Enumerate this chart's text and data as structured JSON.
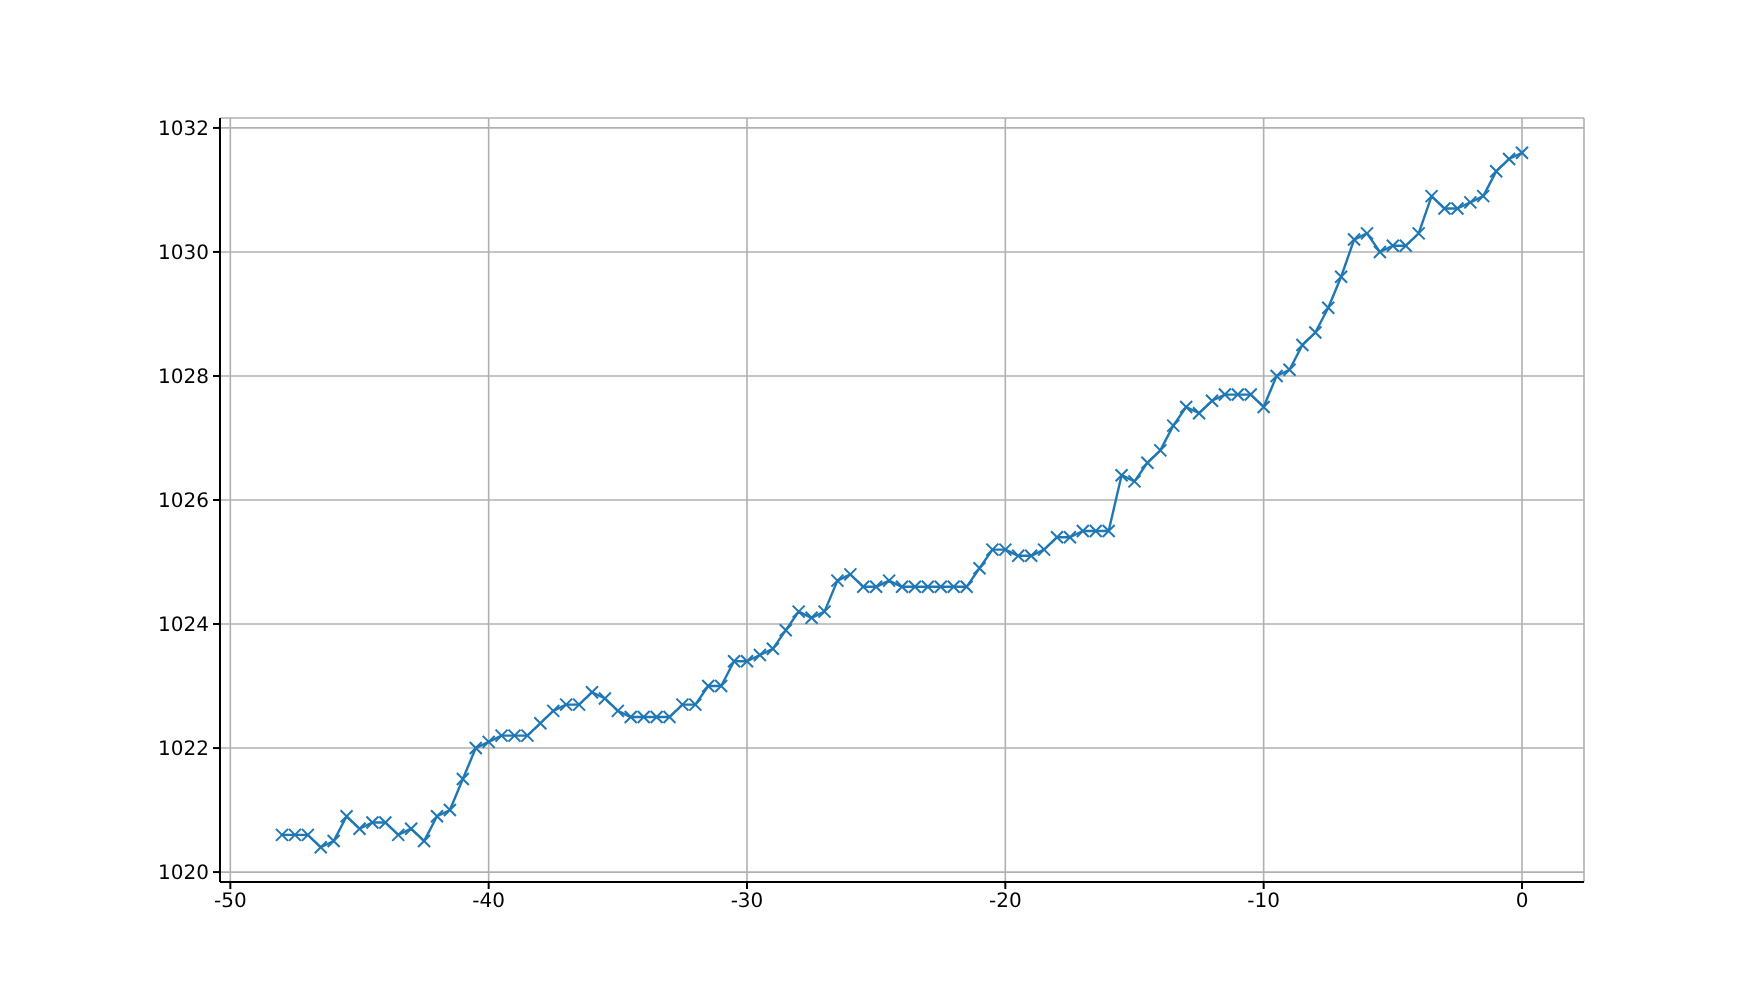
{
  "chart_data": {
    "type": "line",
    "x": [
      -48,
      -47.5,
      -47,
      -46.5,
      -46,
      -45.5,
      -45,
      -44.5,
      -44,
      -43.5,
      -43,
      -42.5,
      -42,
      -41.5,
      -41,
      -40.5,
      -40,
      -39.5,
      -39,
      -38.5,
      -38,
      -37.5,
      -37,
      -36.5,
      -36,
      -35.5,
      -35,
      -34.5,
      -34,
      -33.5,
      -33,
      -32.5,
      -32,
      -31.5,
      -31,
      -30.5,
      -30,
      -29.5,
      -29,
      -28.5,
      -28,
      -27.5,
      -27,
      -26.5,
      -26,
      -25.5,
      -25,
      -24.5,
      -24,
      -23.5,
      -23,
      -22.5,
      -22,
      -21.5,
      -21,
      -20.5,
      -20,
      -19.5,
      -19,
      -18.5,
      -18,
      -17.5,
      -17,
      -16.5,
      -16,
      -15.5,
      -15,
      -14.5,
      -14,
      -13.5,
      -13,
      -12.5,
      -12,
      -11.5,
      -11,
      -10.5,
      -10,
      -9.5,
      -9,
      -8.5,
      -8,
      -7.5,
      -7,
      -6.5,
      -6,
      -5.5,
      -5,
      -4.5,
      -4,
      -3.5,
      -3,
      -2.5,
      -2,
      -1.5,
      -1,
      -0.5,
      0
    ],
    "series": [
      {
        "color": "#1f77b4",
        "values": [
          1020.6,
          1020.6,
          1020.6,
          1020.4,
          1020.5,
          1020.9,
          1020.7,
          1020.8,
          1020.8,
          1020.6,
          1020.7,
          1020.5,
          1020.9,
          1021.0,
          1021.5,
          1022.0,
          1022.1,
          1022.2,
          1022.2,
          1022.2,
          1022.4,
          1022.6,
          1022.7,
          1022.7,
          1022.9,
          1022.8,
          1022.6,
          1022.5,
          1022.5,
          1022.5,
          1022.5,
          1022.7,
          1022.7,
          1023.0,
          1023.0,
          1023.4,
          1023.4,
          1023.5,
          1023.6,
          1023.9,
          1024.2,
          1024.1,
          1024.2,
          1024.7,
          1024.8,
          1024.6,
          1024.6,
          1024.7,
          1024.6,
          1024.6,
          1024.6,
          1024.6,
          1024.6,
          1024.6,
          1024.9,
          1025.2,
          1025.2,
          1025.1,
          1025.1,
          1025.2,
          1025.4,
          1025.4,
          1025.5,
          1025.5,
          1025.5,
          1026.4,
          1026.3,
          1026.6,
          1026.8,
          1027.2,
          1027.5,
          1027.4,
          1027.6,
          1027.7,
          1027.7,
          1027.7,
          1027.5,
          1028.0,
          1028.1,
          1028.5,
          1028.7,
          1029.1,
          1029.6,
          1030.2,
          1030.3,
          1030.0,
          1030.1,
          1030.1,
          1030.3,
          1030.9,
          1030.7,
          1030.7,
          1030.8,
          1030.9,
          1031.3,
          1031.5,
          1031.6
        ]
      }
    ],
    "xlim": [
      -50.4,
      2.4
    ],
    "xticks": [
      -50,
      -40,
      -30,
      -20,
      -10,
      0
    ],
    "ylim": [
      1019.84,
      1032.16
    ],
    "yticks": [
      1020,
      1022,
      1024,
      1026,
      1028,
      1030,
      1032
    ],
    "grid": true,
    "marker": "cross",
    "line_style": "solid",
    "legend": false
  }
}
